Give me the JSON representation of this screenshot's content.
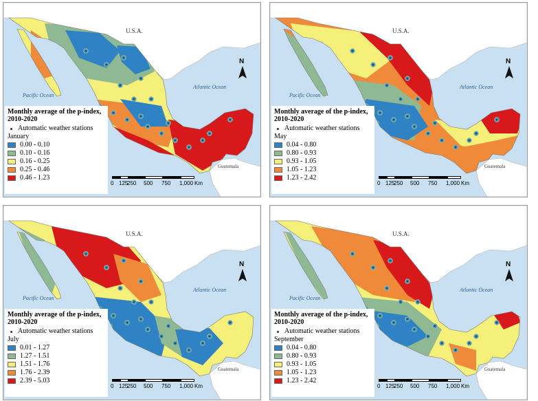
{
  "legend_title": "Monthly average of the p-index, 2010-2020",
  "stations_label": "Automatic weather stations",
  "labels": {
    "usa": "U.S.A.",
    "pacific": "Pacific Ocean",
    "atlantic": "Atlantic Ocean",
    "guatemala": "Guatemala",
    "north": "N"
  },
  "scale": {
    "ticks": [
      "0",
      "125",
      "250",
      "500",
      "750",
      "1,000"
    ],
    "unit": "Km"
  },
  "colors": {
    "c1": "#2f83c4",
    "c2": "#8fb993",
    "c3": "#f5f07a",
    "c4": "#ef8a3a",
    "c5": "#d7191c",
    "ocean": "#c8e0f1",
    "land": "#ffffff"
  },
  "panels": [
    {
      "month": "January",
      "classes": [
        "0.00 - 0.10",
        "0.10 - 0.16",
        "0.16 - 0.25",
        "0.25 - 0.46",
        "0.46 - 1.23"
      ]
    },
    {
      "month": "May",
      "classes": [
        "0.04 - 0.80",
        "0.80 - 0.93",
        "0.93 - 1.05",
        "1.05 - 1.23",
        "1.23 - 2.42"
      ]
    },
    {
      "month": "July",
      "classes": [
        "0.01 - 1.27",
        "1.27 - 1.51",
        "1.51 - 1.76",
        "1.76 - 2.39",
        "2.39 - 5.03"
      ]
    },
    {
      "month": "September",
      "classes": [
        "0.04 - 0.80",
        "0.80 - 0.93",
        "0.93 - 1.05",
        "1.05 - 1.23",
        "1.23 - 2.42"
      ]
    }
  ]
}
